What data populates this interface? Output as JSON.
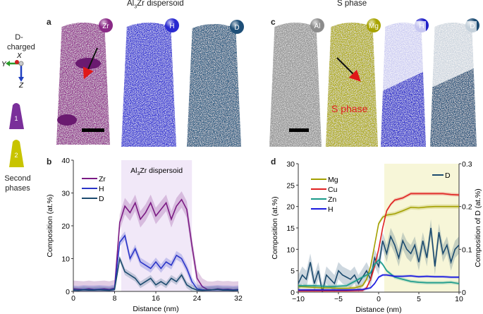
{
  "left_legend": {
    "d_charged": "D-\ncharged",
    "axis_x": "X",
    "axis_y": "Y",
    "axis_z": "Z",
    "tip1": "1",
    "tip2": "2",
    "second_phases": "Second\nphases",
    "colors": {
      "tip1": "#7a2f9a",
      "tip2": "#c8c400"
    }
  },
  "panel_a": {
    "letter": "a",
    "title_prefix": "Al",
    "title_sub": "3",
    "title_suffix": "Zr dispersoid",
    "maps": [
      {
        "element": "Zr",
        "color": "#8a2a86"
      },
      {
        "element": "H",
        "color": "#2a2ad0"
      },
      {
        "element": "D",
        "color": "#1e4f78"
      }
    ]
  },
  "panel_c": {
    "letter": "c",
    "title": "S phase",
    "annotation": "S phase",
    "maps": [
      {
        "element": "Al",
        "color": "#8c8c8c"
      },
      {
        "element": "Mg",
        "color": "#a8a400"
      },
      {
        "element": "H",
        "color": "#2020c8"
      },
      {
        "element": "D",
        "color": "#1a4a72"
      }
    ]
  },
  "chart_data": [
    {
      "panel": "b",
      "type": "line",
      "xlabel": "Distance (nm)",
      "ylabel": "Composition (at.%)",
      "xlim": [
        0,
        32
      ],
      "ylim": [
        0,
        40
      ],
      "xticks": [
        0,
        8,
        16,
        24,
        32
      ],
      "yticks": [
        0,
        10,
        20,
        30,
        40
      ],
      "legend": "top-left",
      "annotation": {
        "prefix": "Al",
        "sub": "3",
        "suffix": "Zr dispersoid"
      },
      "shaded_region": [
        9.3,
        23
      ],
      "x": [
        0,
        1,
        2,
        3,
        4,
        5,
        6,
        7,
        8,
        9,
        10,
        11,
        12,
        13,
        14,
        15,
        16,
        17,
        18,
        19,
        20,
        21,
        22,
        23,
        24,
        25,
        26,
        27,
        28,
        29,
        30,
        31,
        32
      ],
      "series": [
        {
          "name": "Zr",
          "color": "#7b1b84",
          "err": 2.5,
          "values": [
            0.8,
            0.7,
            0.6,
            0.8,
            0.6,
            0.7,
            0.8,
            0.6,
            1,
            21,
            26,
            24,
            27,
            22,
            24,
            27,
            23,
            25,
            27,
            22,
            26,
            28,
            25,
            14,
            4,
            1.5,
            0.6,
            0.5,
            0.8,
            0.6,
            0.7,
            0.5,
            0.6
          ]
        },
        {
          "name": "H",
          "color": "#2b35c8",
          "err": 1.3,
          "values": [
            0.5,
            0.4,
            0.6,
            0.5,
            0.5,
            0.6,
            0.5,
            0.4,
            0.8,
            15,
            17,
            10,
            13,
            9,
            8,
            7,
            9,
            7,
            9,
            8,
            11,
            10,
            7,
            3,
            0.8,
            0.5,
            0.4,
            0.5,
            0.6,
            0.5,
            0.5,
            0.4,
            0.5
          ]
        },
        {
          "name": "D",
          "color": "#1b4a6e",
          "err": 1.0,
          "values": [
            0.4,
            0.3,
            0.5,
            0.4,
            0.4,
            0.5,
            0.4,
            0.3,
            0.6,
            10,
            6,
            5,
            4,
            2,
            3,
            4,
            2,
            3,
            2,
            4,
            3,
            5,
            2,
            1,
            0.4,
            0.3,
            0.4,
            0.5,
            0.6,
            0.4,
            0.4,
            0.3,
            0.4
          ]
        }
      ]
    },
    {
      "panel": "d",
      "type": "line",
      "xlabel": "Distance (nm)",
      "ylabel": "Composition (at.%)",
      "ylabel_right": "Composition of D (at.%)",
      "xlim": [
        -10,
        10
      ],
      "ylim": [
        0,
        30
      ],
      "ylim_right": [
        0,
        0.3
      ],
      "xticks": [
        -10,
        -5,
        0,
        5,
        10
      ],
      "yticks": [
        0,
        5,
        10,
        15,
        20,
        25,
        30
      ],
      "yticks_right": [
        0,
        0.1,
        0.2,
        0.3
      ],
      "legend": "top-left",
      "legend_right": "top-right",
      "shaded_region": [
        0.7,
        10
      ],
      "series": [
        {
          "name": "Mg",
          "color": "#a3a000",
          "err": 0.5,
          "x": [
            -10,
            -9,
            -8,
            -7,
            -6,
            -5,
            -4,
            -3,
            -2,
            -1.5,
            -1,
            -0.5,
            0,
            0.5,
            1,
            2,
            3,
            4,
            5,
            6,
            7,
            8,
            9,
            10
          ],
          "values": [
            1.3,
            1.2,
            1.1,
            1,
            1,
            0.9,
            0.9,
            1,
            1.5,
            3,
            6,
            11,
            16,
            17.5,
            18,
            18.3,
            19,
            19.8,
            19.7,
            19.9,
            20,
            20,
            20,
            20
          ]
        },
        {
          "name": "Cu",
          "color": "#e02020",
          "err": 0.4,
          "x": [
            -10,
            -8,
            -6,
            -4,
            -2,
            -1.5,
            -1,
            -0.5,
            0,
            0.5,
            1,
            1.5,
            2,
            3,
            4,
            5,
            6,
            7,
            8,
            9,
            10
          ],
          "values": [
            0.3,
            0.3,
            0.3,
            0.3,
            0.4,
            1,
            3,
            6,
            10,
            15,
            19,
            20.5,
            21.5,
            22,
            23,
            23,
            23,
            23,
            23,
            22.8,
            22.7
          ]
        },
        {
          "name": "Zn",
          "color": "#1a9a8a",
          "err": 0.4,
          "x": [
            -10,
            -8,
            -6,
            -4,
            -3,
            -2,
            -1,
            -0.5,
            0,
            0.5,
            1,
            2,
            3,
            4,
            5,
            6,
            7,
            8,
            9,
            10
          ],
          "values": [
            1.5,
            1.5,
            1.3,
            1.5,
            2.5,
            3.5,
            4.5,
            6.5,
            7.5,
            6.5,
            5,
            3.5,
            3,
            2.5,
            2.3,
            2.2,
            2.2,
            2.2,
            2.3,
            2
          ]
        },
        {
          "name": "H",
          "color": "#1a1ae0",
          "err": 0.3,
          "x": [
            -10,
            -8,
            -6,
            -4,
            -2,
            -1,
            -0.5,
            0,
            0.5,
            1,
            2,
            3,
            4,
            5,
            6,
            7,
            8,
            9,
            10
          ],
          "values": [
            0.5,
            0.5,
            0.5,
            0.5,
            0.6,
            1,
            2,
            3.5,
            4,
            4,
            3.7,
            3.7,
            3.8,
            3.6,
            3.7,
            3.6,
            3.6,
            3.5,
            3.5
          ]
        },
        {
          "name": "D",
          "axis": "right",
          "color": "#1b4a6e",
          "err": 0.02,
          "x": [
            -10,
            -9.5,
            -9,
            -8.5,
            -8,
            -7.5,
            -7,
            -6.5,
            -6,
            -5.5,
            -5,
            -4.5,
            -4,
            -3.5,
            -3,
            -2.5,
            -2,
            -1.5,
            -1,
            -0.5,
            0,
            0.5,
            1,
            1.5,
            2,
            2.5,
            3,
            3.5,
            4,
            4.5,
            5,
            5.5,
            6,
            6.5,
            7,
            7.5,
            8,
            8.5,
            9,
            9.5,
            10
          ],
          "values": [
            0.02,
            0.04,
            0.03,
            0.07,
            0.02,
            0.05,
            0.0,
            0.04,
            0.03,
            0.02,
            0.05,
            0.04,
            0.035,
            0.03,
            0.04,
            0.02,
            0.035,
            0.05,
            0.03,
            0.08,
            0.06,
            0.12,
            0.09,
            0.13,
            0.11,
            0.08,
            0.12,
            0.1,
            0.09,
            0.11,
            0.07,
            0.12,
            0.08,
            0.15,
            0.06,
            0.14,
            0.09,
            0.11,
            0.07,
            0.1,
            0.11
          ]
        }
      ]
    }
  ]
}
